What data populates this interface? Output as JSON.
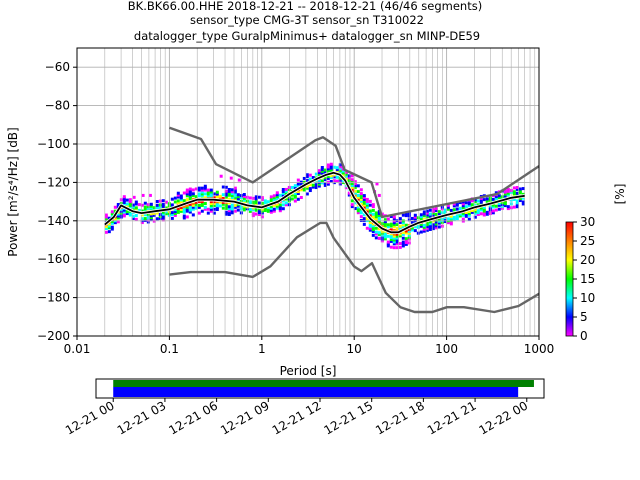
{
  "title": {
    "line1": "BK.BK66.00.HHE   2018-12-21 -- 2018-12-21  (46/46 segments)",
    "line2": "sensor_type CMG-3T sensor_sn T310022",
    "line3": "datalogger_type GuralpMinimus+ datalogger_sn MINP-DE59"
  },
  "chart_data": [
    {
      "type": "heatmap",
      "xlabel": "Period [s]",
      "ylabel": "Power [m²/s⁴/Hz] [dB]",
      "xscale": "log",
      "xlim": [
        0.01,
        1000
      ],
      "ylim": [
        -200,
        -50
      ],
      "xticks": [
        0.01,
        0.1,
        1,
        10,
        100,
        1000
      ],
      "xtick_labels": [
        "0.01",
        "0.1",
        "1",
        "10",
        "100",
        "1000"
      ],
      "yticks": [
        -200,
        -180,
        -160,
        -140,
        -120,
        -100,
        -80,
        -60
      ],
      "ytick_labels": [
        "−200",
        "−180",
        "−160",
        "−140",
        "−120",
        "−100",
        "−80",
        "−60"
      ],
      "grid": true,
      "colorbar": {
        "label": "[%]",
        "range": [
          0,
          30
        ],
        "ticks": [
          0,
          5,
          10,
          15,
          20,
          25,
          30
        ],
        "tick_labels": [
          "0",
          "5",
          "10",
          "15",
          "20",
          "25",
          "30"
        ],
        "colormap": [
          "#ff00ff",
          "#0000ff",
          "#00ffff",
          "#00ff00",
          "#ffff00",
          "#ff8000",
          "#ff0000"
        ]
      },
      "series": [
        {
          "role": "mode",
          "color": "#000000",
          "period": [
            0.02,
            0.025,
            0.03,
            0.04,
            0.05,
            0.07,
            0.1,
            0.15,
            0.2,
            0.3,
            0.5,
            0.7,
            1,
            1.5,
            2,
            3,
            4,
            5,
            6,
            7,
            8,
            10,
            12,
            15,
            20,
            25,
            30,
            40,
            50,
            70,
            100,
            150,
            200,
            300,
            500,
            700
          ],
          "power": [
            -142,
            -138,
            -132,
            -135,
            -136,
            -135,
            -134,
            -131,
            -129,
            -129,
            -130,
            -132,
            -133,
            -130,
            -126,
            -121,
            -118,
            -116,
            -115,
            -116,
            -119,
            -128,
            -133,
            -139,
            -144,
            -146,
            -146,
            -143,
            -141,
            -139,
            -137,
            -135,
            -133,
            -131,
            -128,
            -127
          ]
        },
        {
          "role": "noise model high",
          "color": "#666666",
          "period": [
            0.1,
            0.22,
            0.32,
            0.8,
            3.8,
            4.6,
            6.3,
            7.9,
            15.4,
            20,
            354.8,
            1000
          ],
          "power": [
            -91.5,
            -97.4,
            -110.5,
            -120,
            -98,
            -96.5,
            -101,
            -113.5,
            -120,
            -138,
            -126,
            -111.5
          ]
        },
        {
          "role": "noise model low",
          "color": "#666666",
          "period": [
            0.1,
            0.17,
            0.4,
            0.8,
            1.24,
            2.4,
            4.3,
            5,
            6,
            10,
            12,
            15.6,
            21.9,
            31.6,
            45,
            70,
            101,
            154,
            328,
            600,
            1000
          ],
          "power": [
            -168,
            -166.7,
            -166.7,
            -169.2,
            -163.7,
            -148.6,
            -141.1,
            -141.1,
            -149,
            -163.8,
            -166.2,
            -162.1,
            -177.5,
            -185,
            -187.5,
            -187.5,
            -185,
            -185,
            -187.5,
            -184.4,
            -178
          ]
        }
      ]
    },
    {
      "type": "bar",
      "role": "data coverage",
      "xaxis": "time",
      "xlim": [
        "2018-12-20 23:00",
        "2018-12-22 01:00"
      ],
      "xticks": [
        "12-21 00",
        "12-21 03",
        "12-21 06",
        "12-21 09",
        "12-21 12",
        "12-21 15",
        "12-21 18",
        "12-21 21",
        "12-22 00"
      ],
      "series": [
        {
          "role": "available data",
          "color": "#008000",
          "start": "2018-12-21 00:00",
          "end": "2018-12-22 00:25"
        },
        {
          "role": "used segments",
          "color": "#0000ff",
          "start": "2018-12-21 00:00",
          "end": "2018-12-21 23:30"
        }
      ]
    }
  ]
}
